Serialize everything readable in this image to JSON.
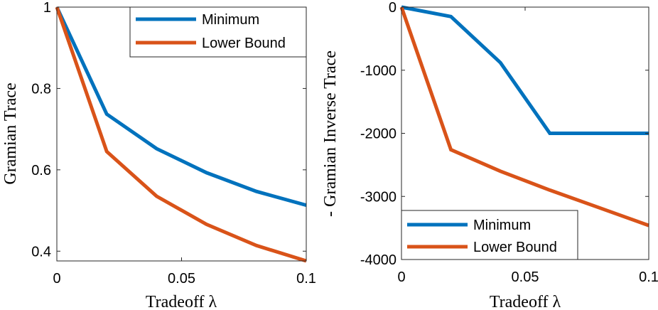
{
  "chart_data": [
    {
      "type": "line",
      "title": "",
      "xlabel": "Tradeoff λ",
      "ylabel": "Gramian Trace",
      "xlim": [
        0,
        0.1
      ],
      "ylim": [
        0.376,
        1.0
      ],
      "xticks": [
        0,
        0.05,
        0.1
      ],
      "xtick_labels": [
        "0",
        "0.05",
        "0.1"
      ],
      "yticks": [
        1,
        0.8,
        0.6,
        0.4
      ],
      "ytick_labels": [
        "1",
        "0.8",
        "0.6",
        "0.4"
      ],
      "legend_position": "top-right",
      "x": [
        0,
        0.02,
        0.04,
        0.06,
        0.08,
        0.1
      ],
      "series": [
        {
          "name": "Minimum",
          "color": "#0072BD",
          "values": [
            1.0,
            0.737,
            0.652,
            0.593,
            0.547,
            0.513
          ]
        },
        {
          "name": "Lower Bound",
          "color": "#D95319",
          "values": [
            1.0,
            0.645,
            0.535,
            0.466,
            0.414,
            0.376
          ]
        }
      ]
    },
    {
      "type": "line",
      "title": "",
      "xlabel": "Tradeoff λ",
      "ylabel": "- Gramian Inverse Trace",
      "xlim": [
        0,
        0.1
      ],
      "ylim": [
        -4000,
        0
      ],
      "xticks": [
        0,
        0.05,
        0.1
      ],
      "xtick_labels": [
        "0",
        "0.05",
        "0.1"
      ],
      "yticks": [
        0,
        -1000,
        -2000,
        -3000,
        -4000
      ],
      "ytick_labels": [
        "0",
        "-1000",
        "-2000",
        "-3000",
        "-4000"
      ],
      "legend_position": "bottom-left",
      "x": [
        0,
        0.02,
        0.04,
        0.06,
        0.08,
        0.1
      ],
      "series": [
        {
          "name": "Minimum",
          "color": "#0072BD",
          "values": [
            0,
            -150,
            -880,
            -2000,
            -2000,
            -2000
          ]
        },
        {
          "name": "Lower Bound",
          "color": "#D95319",
          "values": [
            0,
            -2260,
            -2600,
            -2900,
            -3180,
            -3460
          ]
        }
      ]
    }
  ]
}
